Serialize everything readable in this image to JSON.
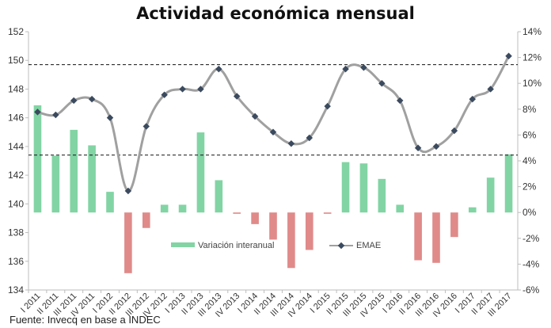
{
  "chart_data": {
    "type": "bar",
    "title": "Actividad económica mensual",
    "source": "Fuente: Invecq en base a INDEC",
    "categories": [
      "I 2011",
      "II 2011",
      "III 2011",
      "IV 2011",
      "I 2012",
      "II 2012",
      "III 2012",
      "IV 2012",
      "I 2013",
      "II 2013",
      "III 2013",
      "IV 2013",
      "I 2014",
      "II 2014",
      "III 2014",
      "IV 2014",
      "I 2015",
      "II 2015",
      "III 2015",
      "IV 2015",
      "I 2016",
      "II 2016",
      "III 2016",
      "IV 2016",
      "I 2017",
      "II 2017",
      "III 2017"
    ],
    "y_left": {
      "min": 134,
      "max": 152,
      "step": 2
    },
    "y_right": {
      "min": -6,
      "max": 14,
      "step": 2,
      "format": "percent"
    },
    "reference_lines_left": [
      149.7,
      143.4
    ],
    "grid": false,
    "legend_position": "bottom-center",
    "series": [
      {
        "name": "Variación interanual",
        "kind": "bar",
        "axis": "right",
        "color": "#82d4a4",
        "negative_color": "#e08a8a",
        "values": [
          8.3,
          4.4,
          6.4,
          5.2,
          1.6,
          -4.7,
          -1.2,
          0.6,
          0.6,
          6.2,
          2.5,
          -0.1,
          -0.9,
          -2.1,
          -4.3,
          -2.9,
          -0.1,
          3.9,
          3.8,
          2.6,
          0.6,
          -3.7,
          -3.9,
          -1.9,
          0.4,
          2.7,
          4.5
        ]
      },
      {
        "name": "EMAE",
        "kind": "line",
        "axis": "left",
        "color": "#a0a0a0",
        "marker_color": "#3b4a5e",
        "values": [
          146.4,
          146.2,
          147.2,
          147.3,
          146.0,
          140.9,
          145.4,
          147.6,
          148.0,
          148.0,
          149.4,
          147.5,
          146.1,
          145.0,
          144.2,
          144.6,
          146.8,
          149.4,
          149.5,
          148.4,
          147.2,
          143.9,
          144.0,
          145.1,
          147.3,
          148.0,
          150.3
        ]
      }
    ]
  }
}
